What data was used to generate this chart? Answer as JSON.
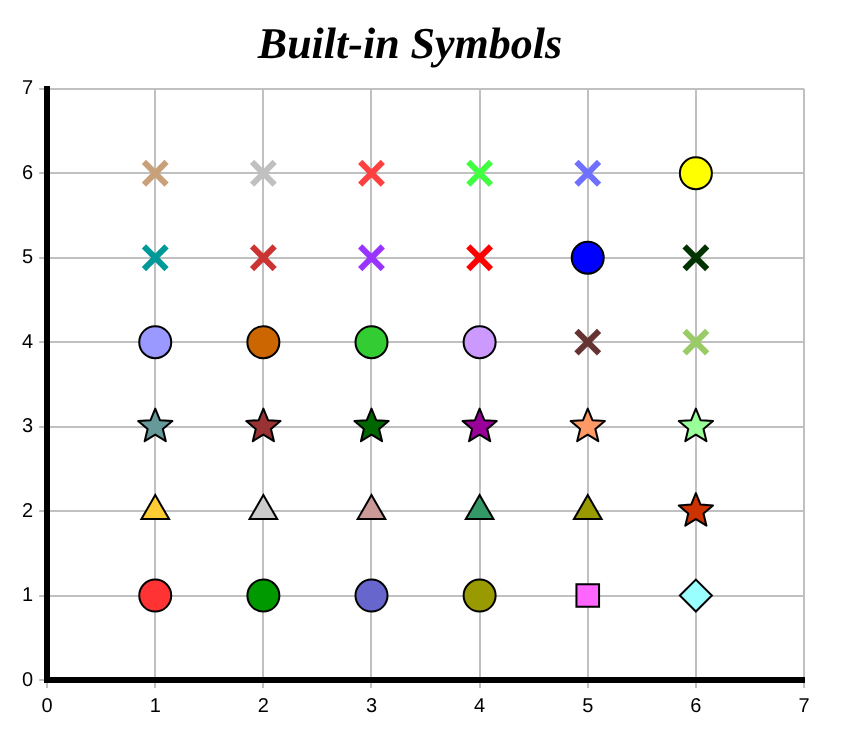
{
  "chart_data": {
    "type": "scatter",
    "title": "Built-in Symbols",
    "xlim": [
      0,
      7
    ],
    "xticks": [
      0,
      1,
      2,
      3,
      4,
      5,
      6,
      7
    ],
    "ylim": [
      0,
      7
    ],
    "yticks": [
      0,
      1,
      2,
      3,
      4,
      5,
      6,
      7
    ],
    "grid": true,
    "legend": false,
    "series": [
      {
        "x": [
          1
        ],
        "values": [
          6
        ],
        "color": "#c8a07a",
        "marker": "cross"
      },
      {
        "x": [
          2
        ],
        "values": [
          6
        ],
        "color": "#c0c0c0",
        "marker": "cross"
      },
      {
        "x": [
          3
        ],
        "values": [
          6
        ],
        "color": "#ff4040",
        "marker": "cross"
      },
      {
        "x": [
          4
        ],
        "values": [
          6
        ],
        "color": "#40ff40",
        "marker": "cross"
      },
      {
        "x": [
          5
        ],
        "values": [
          6
        ],
        "color": "#7070ff",
        "marker": "cross"
      },
      {
        "x": [
          6
        ],
        "values": [
          6
        ],
        "color": "#ffff00",
        "marker": "circle"
      },
      {
        "x": [
          1
        ],
        "values": [
          5
        ],
        "color": "#009999",
        "marker": "cross"
      },
      {
        "x": [
          2
        ],
        "values": [
          5
        ],
        "color": "#cc3333",
        "marker": "cross"
      },
      {
        "x": [
          3
        ],
        "values": [
          5
        ],
        "color": "#9933ff",
        "marker": "cross"
      },
      {
        "x": [
          4
        ],
        "values": [
          5
        ],
        "color": "#ff0000",
        "marker": "cross"
      },
      {
        "x": [
          5
        ],
        "values": [
          5
        ],
        "color": "#0000ff",
        "marker": "circle"
      },
      {
        "x": [
          6
        ],
        "values": [
          5
        ],
        "color": "#003300",
        "marker": "cross"
      },
      {
        "x": [
          1
        ],
        "values": [
          4
        ],
        "color": "#9999ff",
        "marker": "circle"
      },
      {
        "x": [
          2
        ],
        "values": [
          4
        ],
        "color": "#cc6600",
        "marker": "circle"
      },
      {
        "x": [
          3
        ],
        "values": [
          4
        ],
        "color": "#33cc33",
        "marker": "circle"
      },
      {
        "x": [
          4
        ],
        "values": [
          4
        ],
        "color": "#cc99ff",
        "marker": "circle"
      },
      {
        "x": [
          5
        ],
        "values": [
          4
        ],
        "color": "#663333",
        "marker": "cross"
      },
      {
        "x": [
          6
        ],
        "values": [
          4
        ],
        "color": "#99cc66",
        "marker": "cross"
      },
      {
        "x": [
          1
        ],
        "values": [
          3
        ],
        "color": "#669999",
        "marker": "star"
      },
      {
        "x": [
          2
        ],
        "values": [
          3
        ],
        "color": "#993333",
        "marker": "star"
      },
      {
        "x": [
          3
        ],
        "values": [
          3
        ],
        "color": "#006600",
        "marker": "star"
      },
      {
        "x": [
          4
        ],
        "values": [
          3
        ],
        "color": "#990099",
        "marker": "star"
      },
      {
        "x": [
          5
        ],
        "values": [
          3
        ],
        "color": "#ff9966",
        "marker": "star"
      },
      {
        "x": [
          6
        ],
        "values": [
          3
        ],
        "color": "#99ff99",
        "marker": "star"
      },
      {
        "x": [
          1
        ],
        "values": [
          2
        ],
        "color": "#ffcc33",
        "marker": "triangle"
      },
      {
        "x": [
          2
        ],
        "values": [
          2
        ],
        "color": "#cccccc",
        "marker": "triangle"
      },
      {
        "x": [
          3
        ],
        "values": [
          2
        ],
        "color": "#cc9999",
        "marker": "triangle"
      },
      {
        "x": [
          4
        ],
        "values": [
          2
        ],
        "color": "#339966",
        "marker": "triangle"
      },
      {
        "x": [
          5
        ],
        "values": [
          2
        ],
        "color": "#999900",
        "marker": "triangle"
      },
      {
        "x": [
          6
        ],
        "values": [
          2
        ],
        "color": "#cc3300",
        "marker": "star"
      },
      {
        "x": [
          1
        ],
        "values": [
          1
        ],
        "color": "#ff3333",
        "marker": "circle"
      },
      {
        "x": [
          2
        ],
        "values": [
          1
        ],
        "color": "#009900",
        "marker": "circle"
      },
      {
        "x": [
          3
        ],
        "values": [
          1
        ],
        "color": "#6666cc",
        "marker": "circle"
      },
      {
        "x": [
          4
        ],
        "values": [
          1
        ],
        "color": "#999900",
        "marker": "circle"
      },
      {
        "x": [
          5
        ],
        "values": [
          1
        ],
        "color": "#ff66ff",
        "marker": "square"
      },
      {
        "x": [
          6
        ],
        "values": [
          1
        ],
        "color": "#99ffff",
        "marker": "diamond"
      }
    ]
  }
}
